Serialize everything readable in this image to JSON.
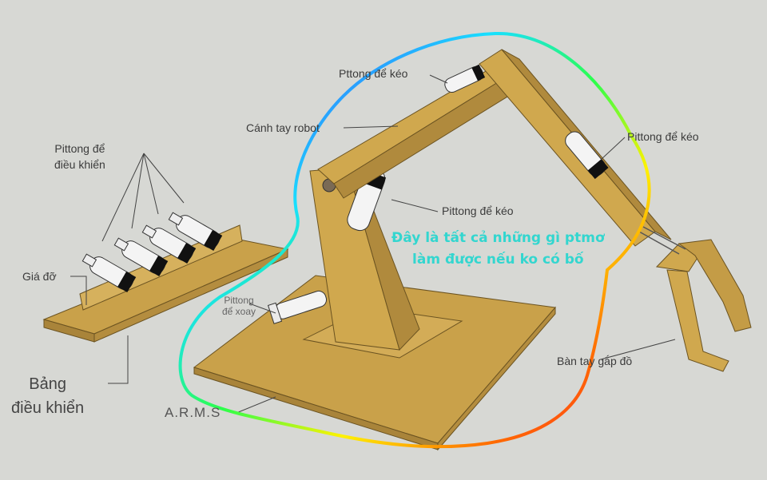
{
  "labels": {
    "pittong_keo_top": "Pttong để kéo",
    "pittong_keo_right": "Pittong để kéo",
    "canh_tay": "Cánh tay robot",
    "pittong_dieu_khien_1": "Pittong để",
    "pittong_dieu_khien_2": "điều khiển",
    "pittong_keo_mid": "Pittong để kéo",
    "gia_do": "Giá đỡ",
    "pittong_xoay_1": "Pittong",
    "pittong_xoay_2": "để xoay",
    "ban_tay": "Bàn tay gắp đồ",
    "bang_1": "Bảng",
    "bang_2": "điều khiển",
    "arms": "A.R.M.S"
  },
  "caption": {
    "line1": "Đây là tất cả những gì ptmơ",
    "line2": "làm được nếu ko có bố"
  },
  "colors": {
    "background": "#d7d8d4",
    "wood": "#d0a84e",
    "wood_dark": "#8a6c2c",
    "caption": "#33d6cf",
    "highlight_stroke": "rainbow"
  }
}
